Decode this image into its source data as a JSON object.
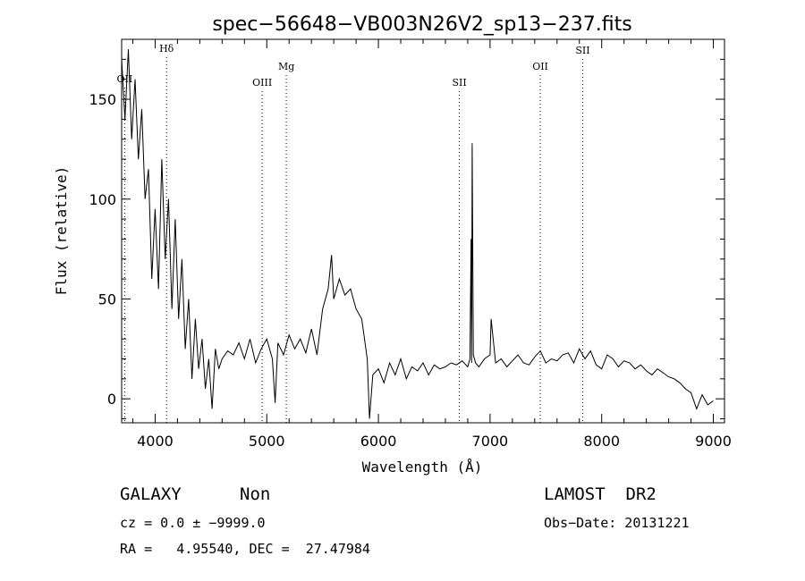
{
  "chart_data": {
    "type": "line",
    "title": "spec−56648−VB003N26V2_sp13−237.fits",
    "xlabel": "Wavelength (Å)",
    "ylabel": "Flux (relative)",
    "xlim": [
      3700,
      9100
    ],
    "ylim": [
      -12,
      180
    ],
    "xticks": [
      4000,
      5000,
      6000,
      7000,
      8000,
      9000
    ],
    "yticks": [
      0,
      50,
      100,
      150
    ],
    "grid": false,
    "series": [
      {
        "x": [
          3700,
          3730,
          3760,
          3790,
          3820,
          3850,
          3880,
          3910,
          3940,
          3970,
          4000,
          4030,
          4060,
          4090,
          4120,
          4150,
          4180,
          4210,
          4240,
          4270,
          4300,
          4330,
          4360,
          4390,
          4420,
          4450,
          4480,
          4510,
          4540,
          4570,
          4600,
          4650,
          4700,
          4750,
          4800,
          4850,
          4900,
          4950,
          5000,
          5050,
          5075,
          5100,
          5150,
          5200,
          5250,
          5300,
          5350,
          5400,
          5450,
          5500,
          5550,
          5580,
          5600,
          5650,
          5700,
          5750,
          5800,
          5850,
          5900,
          5920,
          5950,
          6000,
          6050,
          6100,
          6150,
          6200,
          6250,
          6300,
          6350,
          6400,
          6450,
          6500,
          6550,
          6600,
          6650,
          6700,
          6750,
          6800,
          6820,
          6830,
          6835,
          6840,
          6850,
          6870,
          6900,
          6950,
          7000,
          7010,
          7050,
          7100,
          7150,
          7200,
          7250,
          7300,
          7350,
          7400,
          7450,
          7500,
          7550,
          7600,
          7650,
          7700,
          7750,
          7800,
          7850,
          7900,
          7950,
          8000,
          8050,
          8100,
          8150,
          8200,
          8250,
          8300,
          8350,
          8400,
          8450,
          8500,
          8550,
          8600,
          8650,
          8700,
          8750,
          8800,
          8850,
          8900,
          8950,
          9000
        ],
        "y": [
          170,
          140,
          175,
          130,
          160,
          120,
          145,
          100,
          115,
          60,
          95,
          55,
          120,
          70,
          100,
          45,
          90,
          40,
          70,
          25,
          50,
          10,
          40,
          15,
          30,
          5,
          20,
          -5,
          25,
          15,
          20,
          24,
          22,
          28,
          20,
          30,
          18,
          25,
          30,
          20,
          -2,
          28,
          22,
          32,
          25,
          30,
          23,
          35,
          22,
          45,
          55,
          72,
          50,
          60,
          52,
          55,
          45,
          40,
          20,
          -10,
          12,
          15,
          8,
          18,
          12,
          20,
          10,
          16,
          14,
          18,
          12,
          17,
          15,
          16,
          18,
          17,
          19,
          16,
          20,
          80,
          18,
          128,
          22,
          18,
          16,
          20,
          22,
          40,
          18,
          20,
          16,
          19,
          22,
          18,
          17,
          21,
          24,
          18,
          20,
          19,
          22,
          23,
          18,
          25,
          20,
          24,
          17,
          15,
          22,
          20,
          16,
          19,
          18,
          15,
          17,
          14,
          12,
          15,
          13,
          11,
          10,
          8,
          5,
          3,
          -5,
          2,
          -3,
          -1
        ]
      }
    ],
    "line_marks": [
      {
        "label": "OII",
        "x": 3727
      },
      {
        "label": "Hδ",
        "x": 4102
      },
      {
        "label": "OIII",
        "x": 4959
      },
      {
        "label": "Mg",
        "x": 5175
      },
      {
        "label": "SII",
        "x": 6725
      },
      {
        "label": "OII",
        "x": 7450
      },
      {
        "label": "SII",
        "x": 7830
      }
    ]
  },
  "info": {
    "object_class": "GALAXY",
    "subclass": "Non",
    "survey": "LAMOST  DR2",
    "cz": "cz = 0.0 ± −9999.0",
    "obs_date": "Obs−Date: 20131221",
    "coords": "RA =   4.95540, DEC =  27.47984"
  }
}
